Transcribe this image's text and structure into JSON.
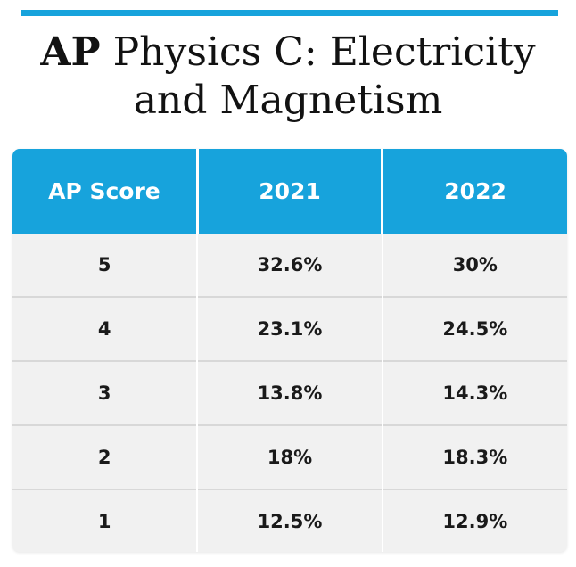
{
  "colors": {
    "accent": "#17a3dc",
    "header_text": "#ffffff",
    "row_bg": "#f1f1f1",
    "title_text": "#121212"
  },
  "title": {
    "bold": "AP",
    "rest": " Physics C: Electricity and Magnetism"
  },
  "chart_data": {
    "type": "table",
    "columns": [
      "AP Score",
      "2021",
      "2022"
    ],
    "rows": [
      [
        "5",
        "32.6%",
        "30%"
      ],
      [
        "4",
        "23.1%",
        "24.5%"
      ],
      [
        "3",
        "13.8%",
        "14.3%"
      ],
      [
        "2",
        "18%",
        "18.3%"
      ],
      [
        "1",
        "12.5%",
        "12.9%"
      ]
    ]
  }
}
